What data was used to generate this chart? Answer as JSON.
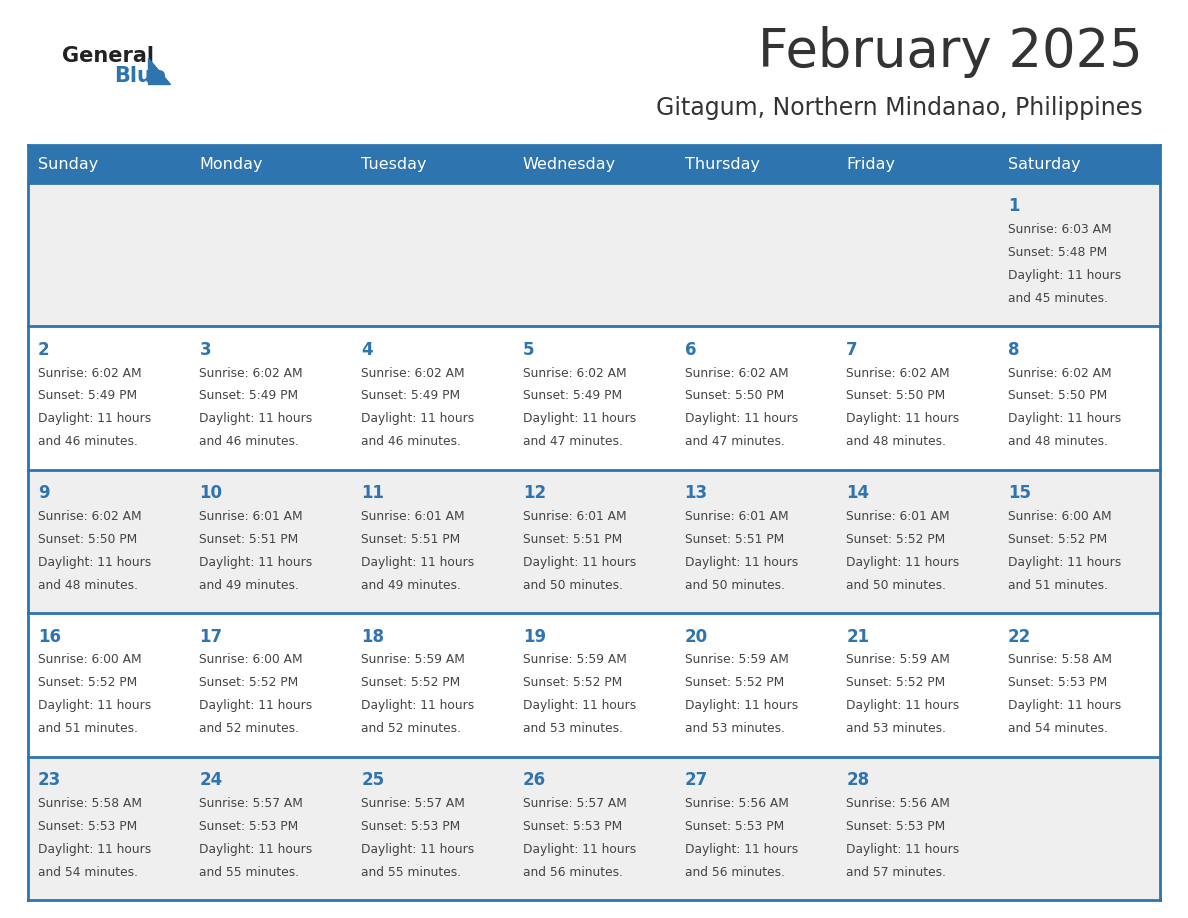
{
  "title": "February 2025",
  "subtitle": "Gitagum, Northern Mindanao, Philippines",
  "days_of_week": [
    "Sunday",
    "Monday",
    "Tuesday",
    "Wednesday",
    "Thursday",
    "Friday",
    "Saturday"
  ],
  "header_bg": "#2E74AE",
  "header_text": "#FFFFFF",
  "cell_bg_odd": "#EFEFEF",
  "cell_bg_even": "#FFFFFF",
  "cell_text": "#444444",
  "day_num_color": "#2E74AE",
  "border_color": "#2E74AE",
  "title_color": "#333333",
  "logo_general_color": "#222222",
  "logo_blue_color": "#2E74AE",
  "calendar_data": [
    {
      "day": 1,
      "week": 0,
      "dow": 6,
      "sunrise": "6:03 AM",
      "sunset": "5:48 PM",
      "daylight": "11 hours and 45 minutes."
    },
    {
      "day": 2,
      "week": 1,
      "dow": 0,
      "sunrise": "6:02 AM",
      "sunset": "5:49 PM",
      "daylight": "11 hours and 46 minutes."
    },
    {
      "day": 3,
      "week": 1,
      "dow": 1,
      "sunrise": "6:02 AM",
      "sunset": "5:49 PM",
      "daylight": "11 hours and 46 minutes."
    },
    {
      "day": 4,
      "week": 1,
      "dow": 2,
      "sunrise": "6:02 AM",
      "sunset": "5:49 PM",
      "daylight": "11 hours and 46 minutes."
    },
    {
      "day": 5,
      "week": 1,
      "dow": 3,
      "sunrise": "6:02 AM",
      "sunset": "5:49 PM",
      "daylight": "11 hours and 47 minutes."
    },
    {
      "day": 6,
      "week": 1,
      "dow": 4,
      "sunrise": "6:02 AM",
      "sunset": "5:50 PM",
      "daylight": "11 hours and 47 minutes."
    },
    {
      "day": 7,
      "week": 1,
      "dow": 5,
      "sunrise": "6:02 AM",
      "sunset": "5:50 PM",
      "daylight": "11 hours and 48 minutes."
    },
    {
      "day": 8,
      "week": 1,
      "dow": 6,
      "sunrise": "6:02 AM",
      "sunset": "5:50 PM",
      "daylight": "11 hours and 48 minutes."
    },
    {
      "day": 9,
      "week": 2,
      "dow": 0,
      "sunrise": "6:02 AM",
      "sunset": "5:50 PM",
      "daylight": "11 hours and 48 minutes."
    },
    {
      "day": 10,
      "week": 2,
      "dow": 1,
      "sunrise": "6:01 AM",
      "sunset": "5:51 PM",
      "daylight": "11 hours and 49 minutes."
    },
    {
      "day": 11,
      "week": 2,
      "dow": 2,
      "sunrise": "6:01 AM",
      "sunset": "5:51 PM",
      "daylight": "11 hours and 49 minutes."
    },
    {
      "day": 12,
      "week": 2,
      "dow": 3,
      "sunrise": "6:01 AM",
      "sunset": "5:51 PM",
      "daylight": "11 hours and 50 minutes."
    },
    {
      "day": 13,
      "week": 2,
      "dow": 4,
      "sunrise": "6:01 AM",
      "sunset": "5:51 PM",
      "daylight": "11 hours and 50 minutes."
    },
    {
      "day": 14,
      "week": 2,
      "dow": 5,
      "sunrise": "6:01 AM",
      "sunset": "5:52 PM",
      "daylight": "11 hours and 50 minutes."
    },
    {
      "day": 15,
      "week": 2,
      "dow": 6,
      "sunrise": "6:00 AM",
      "sunset": "5:52 PM",
      "daylight": "11 hours and 51 minutes."
    },
    {
      "day": 16,
      "week": 3,
      "dow": 0,
      "sunrise": "6:00 AM",
      "sunset": "5:52 PM",
      "daylight": "11 hours and 51 minutes."
    },
    {
      "day": 17,
      "week": 3,
      "dow": 1,
      "sunrise": "6:00 AM",
      "sunset": "5:52 PM",
      "daylight": "11 hours and 52 minutes."
    },
    {
      "day": 18,
      "week": 3,
      "dow": 2,
      "sunrise": "5:59 AM",
      "sunset": "5:52 PM",
      "daylight": "11 hours and 52 minutes."
    },
    {
      "day": 19,
      "week": 3,
      "dow": 3,
      "sunrise": "5:59 AM",
      "sunset": "5:52 PM",
      "daylight": "11 hours and 53 minutes."
    },
    {
      "day": 20,
      "week": 3,
      "dow": 4,
      "sunrise": "5:59 AM",
      "sunset": "5:52 PM",
      "daylight": "11 hours and 53 minutes."
    },
    {
      "day": 21,
      "week": 3,
      "dow": 5,
      "sunrise": "5:59 AM",
      "sunset": "5:52 PM",
      "daylight": "11 hours and 53 minutes."
    },
    {
      "day": 22,
      "week": 3,
      "dow": 6,
      "sunrise": "5:58 AM",
      "sunset": "5:53 PM",
      "daylight": "11 hours and 54 minutes."
    },
    {
      "day": 23,
      "week": 4,
      "dow": 0,
      "sunrise": "5:58 AM",
      "sunset": "5:53 PM",
      "daylight": "11 hours and 54 minutes."
    },
    {
      "day": 24,
      "week": 4,
      "dow": 1,
      "sunrise": "5:57 AM",
      "sunset": "5:53 PM",
      "daylight": "11 hours and 55 minutes."
    },
    {
      "day": 25,
      "week": 4,
      "dow": 2,
      "sunrise": "5:57 AM",
      "sunset": "5:53 PM",
      "daylight": "11 hours and 55 minutes."
    },
    {
      "day": 26,
      "week": 4,
      "dow": 3,
      "sunrise": "5:57 AM",
      "sunset": "5:53 PM",
      "daylight": "11 hours and 56 minutes."
    },
    {
      "day": 27,
      "week": 4,
      "dow": 4,
      "sunrise": "5:56 AM",
      "sunset": "5:53 PM",
      "daylight": "11 hours and 56 minutes."
    },
    {
      "day": 28,
      "week": 4,
      "dow": 5,
      "sunrise": "5:56 AM",
      "sunset": "5:53 PM",
      "daylight": "11 hours and 57 minutes."
    }
  ]
}
